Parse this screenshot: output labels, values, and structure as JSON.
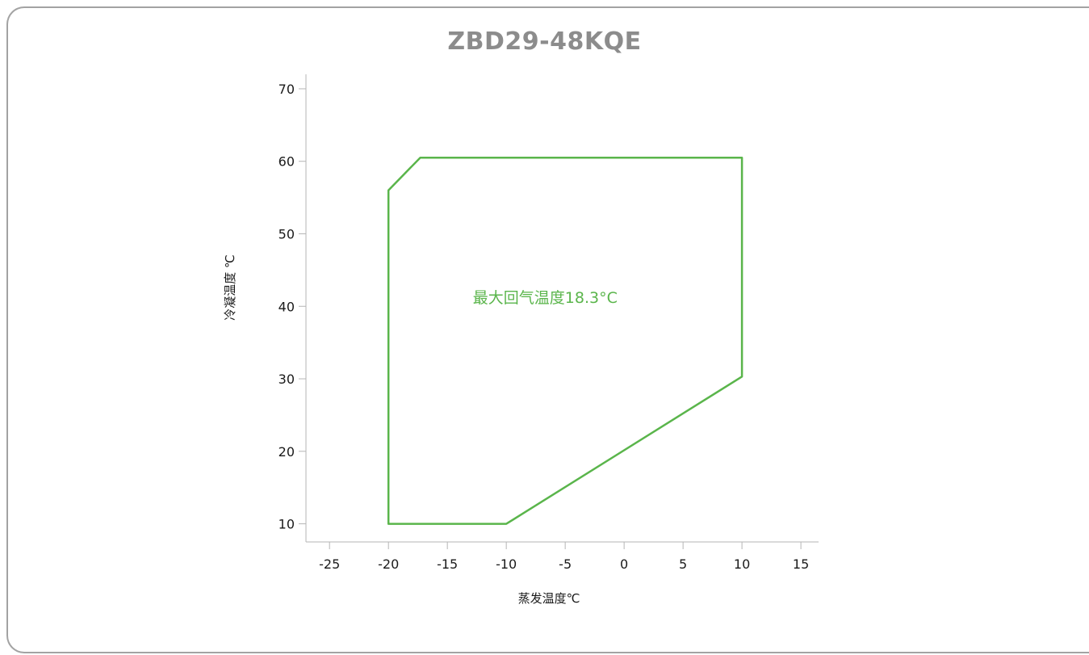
{
  "chart_data": {
    "type": "line",
    "title": "ZBD29-48KQE",
    "xlabel": "蒸发温度℃",
    "ylabel": "冷凝温度 ℃",
    "xlim": [
      -27,
      16.5
    ],
    "ylim": [
      7.5,
      72
    ],
    "xticks": [
      -25,
      -20,
      -15,
      -10,
      -5,
      0,
      5,
      10,
      15
    ],
    "yticks": [
      10,
      20,
      30,
      40,
      50,
      60,
      70
    ],
    "xtick_labels": [
      "-25",
      "-20",
      "-15",
      "-10",
      "-5",
      "0",
      "5",
      "10",
      "15"
    ],
    "ytick_labels": [
      "10",
      "20",
      "30",
      "40",
      "50",
      "60",
      "70"
    ],
    "grid": false,
    "legend": "none",
    "series": [
      {
        "closed": true,
        "color": "#5ab54b",
        "x": [
          -20,
          -17.3,
          10,
          10,
          -10,
          -20
        ],
        "y": [
          56,
          60.5,
          60.5,
          30.3,
          10,
          10
        ]
      }
    ],
    "annotations": [
      {
        "text": "最大回气温度18.3°C",
        "x": -6.7,
        "y": 40.5
      }
    ]
  }
}
